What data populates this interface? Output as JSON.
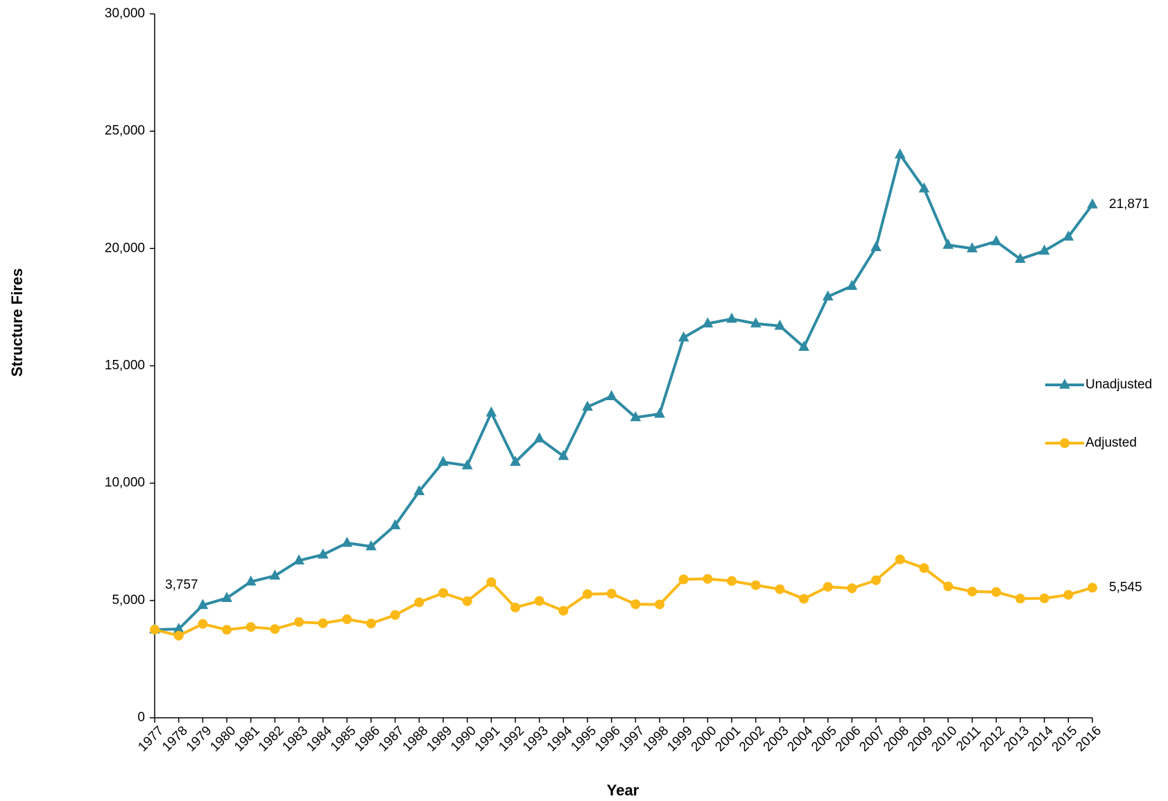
{
  "chart_data": {
    "type": "line",
    "x_label": "Year",
    "y_label": "Structure Fires",
    "categories": [
      "1977",
      "1978",
      "1979",
      "1980",
      "1981",
      "1982",
      "1983",
      "1984",
      "1985",
      "1986",
      "1987",
      "1988",
      "1989",
      "1990",
      "1991",
      "1992",
      "1993",
      "1994",
      "1995",
      "1996",
      "1997",
      "1998",
      "1999",
      "2000",
      "2001",
      "2002",
      "2003",
      "2004",
      "2005",
      "2006",
      "2007",
      "2008",
      "2009",
      "2010",
      "2011",
      "2012",
      "2013",
      "2014",
      "2015",
      "2016"
    ],
    "series": [
      {
        "name": "Unadjusted",
        "color": "#2e8ba3",
        "marker": "triangle",
        "values": [
          3757,
          3780,
          4800,
          5100,
          5800,
          6050,
          6700,
          6950,
          7450,
          7300,
          8200,
          9650,
          10900,
          10750,
          13000,
          10900,
          11900,
          11150,
          13250,
          13700,
          12800,
          12950,
          16200,
          16800,
          17000,
          16800,
          16700,
          15800,
          17950,
          18400,
          20050,
          24000,
          22550,
          20150,
          20000,
          20300,
          19550,
          19900,
          20500,
          21871
        ],
        "value_labels": [
          "3,757",
          null,
          null,
          null,
          null,
          null,
          null,
          null,
          null,
          null,
          null,
          null,
          null,
          null,
          null,
          null,
          null,
          null,
          null,
          null,
          null,
          null,
          null,
          null,
          null,
          null,
          null,
          null,
          null,
          null,
          null,
          null,
          null,
          null,
          null,
          null,
          null,
          null,
          null,
          "21,871"
        ]
      },
      {
        "name": "Adjusted",
        "color": "#fbb917",
        "marker": "circle",
        "values": [
          3757,
          3500,
          4000,
          3750,
          3870,
          3780,
          4080,
          4030,
          4200,
          4020,
          4380,
          4920,
          5320,
          4970,
          5780,
          4700,
          4980,
          4560,
          5270,
          5290,
          4840,
          4830,
          5900,
          5920,
          5830,
          5650,
          5480,
          5070,
          5580,
          5520,
          5860,
          6750,
          6380,
          5600,
          5380,
          5360,
          5080,
          5090,
          5240,
          5545
        ],
        "value_labels": [
          null,
          null,
          null,
          null,
          null,
          null,
          null,
          null,
          null,
          null,
          null,
          null,
          null,
          null,
          null,
          null,
          null,
          null,
          null,
          null,
          null,
          null,
          null,
          null,
          null,
          null,
          null,
          null,
          null,
          null,
          null,
          null,
          null,
          null,
          null,
          null,
          null,
          null,
          null,
          "5,545"
        ]
      }
    ],
    "ylim": [
      0,
      30000
    ],
    "yticks": [
      0,
      {
        "value": 5000,
        "label": "5,000"
      },
      {
        "value": 10000,
        "label": "10,000"
      },
      {
        "value": 15000,
        "label": "15,000"
      },
      {
        "value": 20000,
        "label": "20,000"
      },
      {
        "value": 25000,
        "label": "25,000"
      },
      {
        "value": 30000,
        "label": "30,000"
      }
    ],
    "grid": false,
    "legend": "right"
  }
}
